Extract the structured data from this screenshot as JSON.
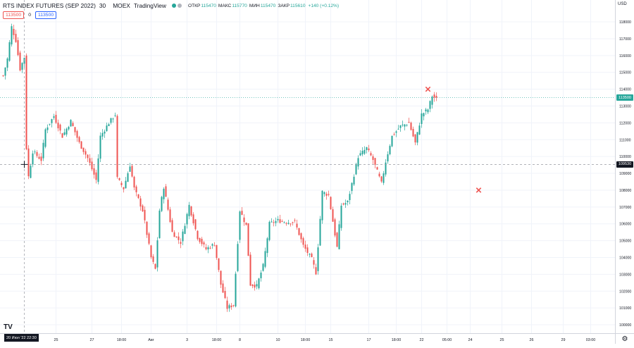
{
  "header": {
    "symbol": "RTS INDEX FUTURES (SEP 2022)",
    "interval": "30",
    "exchange": "MOEX",
    "source": "TradingView",
    "ohlc": [
      {
        "key": "ОТКР",
        "value": "115470"
      },
      {
        "key": "МАКС",
        "value": "115770"
      },
      {
        "key": "МИН",
        "value": "115470"
      },
      {
        "key": "ЗАКР",
        "value": "115610"
      }
    ],
    "change": "+140 (+0.12%)"
  },
  "trade": {
    "sell": "113500",
    "spread": "0",
    "buy": "113500"
  },
  "price_axis": {
    "currency": "USD"
  },
  "crosshair": {
    "price_label": "109530",
    "time_label": "20 Июл '22  22:30"
  },
  "last_price": {
    "label": "113500"
  },
  "settings": {
    "icon": "gear-icon",
    "glyph": "⚙"
  },
  "logo": {
    "text": "TV"
  },
  "colors": {
    "up": "#26a69a",
    "down": "#ef5350",
    "grid": "#f0f3fa",
    "marker": "#ef5350"
  },
  "chart_data": {
    "type": "candlestick",
    "title": "RTS INDEX FUTURES (SEP 2022)",
    "xlabel": "",
    "ylabel": "",
    "ylim": [
      99500,
      119300
    ],
    "grid": true,
    "y_ticks": [
      100000,
      101000,
      102000,
      103000,
      104000,
      105000,
      106000,
      107000,
      108000,
      109000,
      110000,
      111000,
      112000,
      113000,
      114000,
      115000,
      116000,
      117000,
      118000
    ],
    "x_tick_labels": [
      "25",
      "27",
      "18:00",
      "Авг",
      "3",
      "18:00",
      "8",
      "10",
      "18:00",
      "15",
      "17",
      "18:00",
      "22",
      "05:00",
      "24",
      "25",
      "26",
      "29",
      "03:00"
    ],
    "x_tick_index": [
      25,
      42,
      56,
      70,
      87,
      101,
      112,
      130,
      143,
      155,
      173,
      186,
      198,
      210,
      221,
      236,
      250,
      265,
      278
    ],
    "series_path": [
      [
        0,
        114800
      ],
      [
        2,
        115800
      ],
      [
        4,
        117700
      ],
      [
        6,
        116900
      ],
      [
        8,
        115200
      ],
      [
        10,
        115900
      ],
      [
        11,
        110500
      ],
      [
        12,
        108800
      ],
      [
        14,
        110300
      ],
      [
        18,
        109800
      ],
      [
        20,
        111600
      ],
      [
        24,
        112400
      ],
      [
        28,
        111200
      ],
      [
        32,
        112100
      ],
      [
        36,
        110800
      ],
      [
        40,
        109900
      ],
      [
        44,
        108600
      ],
      [
        46,
        111200
      ],
      [
        50,
        112000
      ],
      [
        53,
        112500
      ],
      [
        54,
        108700
      ],
      [
        57,
        108100
      ],
      [
        60,
        109500
      ],
      [
        62,
        108100
      ],
      [
        66,
        106800
      ],
      [
        70,
        104000
      ],
      [
        72,
        103300
      ],
      [
        74,
        106800
      ],
      [
        76,
        108200
      ],
      [
        80,
        105500
      ],
      [
        84,
        104900
      ],
      [
        88,
        107100
      ],
      [
        92,
        105200
      ],
      [
        96,
        104500
      ],
      [
        100,
        104800
      ],
      [
        103,
        102400
      ],
      [
        106,
        101000
      ],
      [
        109,
        101200
      ],
      [
        112,
        106800
      ],
      [
        115,
        105900
      ],
      [
        117,
        102400
      ],
      [
        120,
        102300
      ],
      [
        123,
        103500
      ],
      [
        126,
        106000
      ],
      [
        130,
        106200
      ],
      [
        134,
        106100
      ],
      [
        138,
        106100
      ],
      [
        142,
        104700
      ],
      [
        146,
        103900
      ],
      [
        148,
        103100
      ],
      [
        151,
        107900
      ],
      [
        154,
        107700
      ],
      [
        158,
        104600
      ],
      [
        160,
        107100
      ],
      [
        163,
        107300
      ],
      [
        168,
        110000
      ],
      [
        172,
        110500
      ],
      [
        175,
        109800
      ],
      [
        179,
        108400
      ],
      [
        181,
        109700
      ],
      [
        184,
        111200
      ],
      [
        188,
        111800
      ],
      [
        192,
        112000
      ],
      [
        195,
        110800
      ],
      [
        198,
        112500
      ],
      [
        201,
        112800
      ],
      [
        203,
        113600
      ],
      [
        205,
        113400
      ]
    ],
    "annotations": [
      {
        "type": "x-marker",
        "x_index": 201,
        "y": 114000
      },
      {
        "type": "x-marker",
        "x_index": 225,
        "y": 108000
      }
    ],
    "crosshair": {
      "x_index": 10,
      "y": 109530
    },
    "last_price": 113500
  }
}
